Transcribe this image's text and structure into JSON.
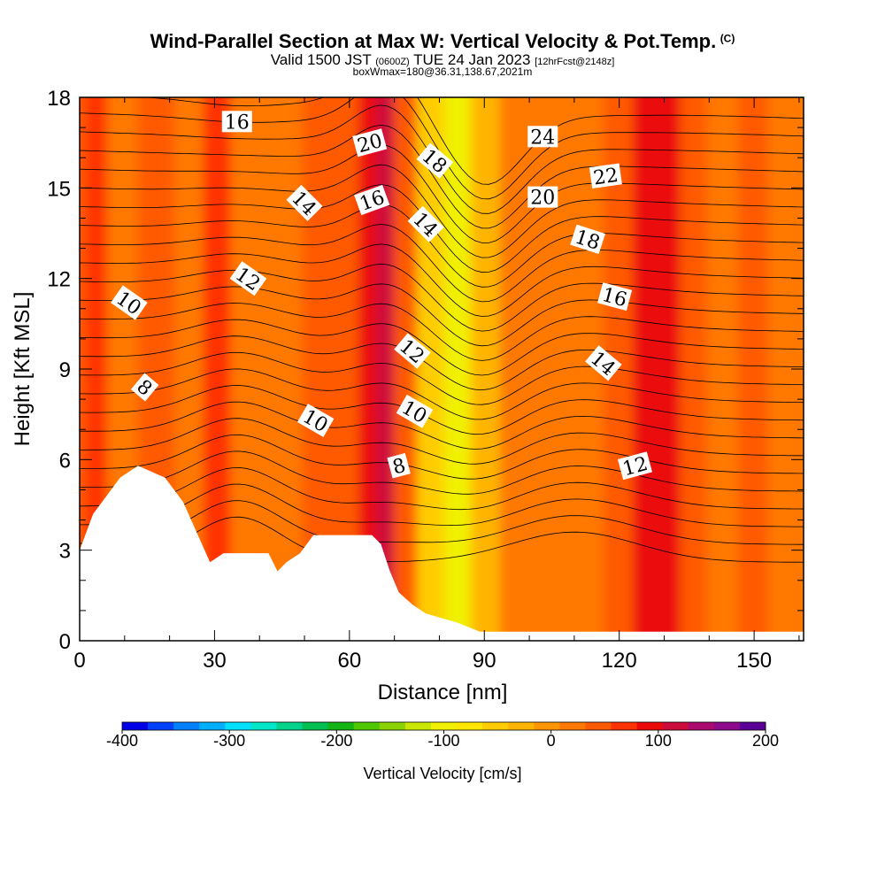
{
  "header": {
    "title": "Wind-Parallel Section at Max W: Vertical Velocity & Pot.Temp.",
    "copyright": "(C)",
    "valid_prefix": "Valid 1500 JST",
    "valid_zulu": "(0600Z)",
    "valid_date": "TUE 24 Jan 2023",
    "forecast_info": "[12hrFcst@2148z]",
    "box_info": "boxWmax=180@36.31,138.67,2021m"
  },
  "chart_data": {
    "type": "heatmap",
    "title": "Wind-Parallel Section at Max W: Vertical Velocity & Pot.Temp.",
    "xlabel": "Distance [nm]",
    "ylabel": "Height [Kft MSL]",
    "xlim": [
      0,
      161
    ],
    "ylim": [
      0,
      18
    ],
    "x_ticks": [
      0,
      30,
      60,
      90,
      120,
      150
    ],
    "y_ticks": [
      0,
      3,
      6,
      9,
      12,
      15,
      18
    ],
    "fill_variable": "Vertical Velocity [cm/s]",
    "contour_variable": "Potential temperature",
    "colorbar": {
      "label": "Vertical Velocity [cm/s]",
      "range": [
        -400,
        200
      ],
      "tick_labels": [
        "-400",
        "-300",
        "-200",
        "-100",
        "0",
        "100",
        "200"
      ],
      "ticks": [
        -400,
        -300,
        -200,
        -100,
        0,
        100,
        200
      ],
      "colors": [
        "#0000e6",
        "#0040ff",
        "#0080ff",
        "#00b0ff",
        "#00e0ff",
        "#00e6c8",
        "#00d28c",
        "#00be50",
        "#14b414",
        "#50c800",
        "#8cd200",
        "#c8e600",
        "#f0f000",
        "#ffe600",
        "#ffcc00",
        "#ffb400",
        "#ff9600",
        "#ff7800",
        "#ff5a00",
        "#ff3200",
        "#eb0a0a",
        "#cd0a3c",
        "#aa0a6e",
        "#8c0a8c",
        "#5a0096"
      ]
    },
    "velocity_columns": [
      {
        "x": 0,
        "value": 40
      },
      {
        "x": 3,
        "value": 70
      },
      {
        "x": 9,
        "value": 20
      },
      {
        "x": 17,
        "value": 40
      },
      {
        "x": 25,
        "value": 15
      },
      {
        "x": 30,
        "value": 60
      },
      {
        "x": 37,
        "value": 30
      },
      {
        "x": 46,
        "value": 10
      },
      {
        "x": 53,
        "value": 35
      },
      {
        "x": 60,
        "value": 50
      },
      {
        "x": 64,
        "value": 100
      },
      {
        "x": 68,
        "value": 110
      },
      {
        "x": 72,
        "value": 40
      },
      {
        "x": 78,
        "value": -60
      },
      {
        "x": 84,
        "value": -90
      },
      {
        "x": 90,
        "value": -40
      },
      {
        "x": 97,
        "value": 10
      },
      {
        "x": 105,
        "value": 15
      },
      {
        "x": 113,
        "value": 10
      },
      {
        "x": 120,
        "value": 40
      },
      {
        "x": 126,
        "value": 80
      },
      {
        "x": 131,
        "value": 95
      },
      {
        "x": 136,
        "value": 50
      },
      {
        "x": 143,
        "value": 25
      },
      {
        "x": 150,
        "value": 55
      },
      {
        "x": 156,
        "value": 20
      },
      {
        "x": 161,
        "value": 20
      }
    ],
    "terrain": [
      {
        "x": 0,
        "y": 3.0
      },
      {
        "x": 3,
        "y": 4.2
      },
      {
        "x": 6,
        "y": 4.8
      },
      {
        "x": 9,
        "y": 5.4
      },
      {
        "x": 13,
        "y": 5.8
      },
      {
        "x": 19,
        "y": 5.4
      },
      {
        "x": 23,
        "y": 4.6
      },
      {
        "x": 26,
        "y": 3.6
      },
      {
        "x": 29,
        "y": 2.6
      },
      {
        "x": 32,
        "y": 2.9
      },
      {
        "x": 42,
        "y": 2.9
      },
      {
        "x": 44,
        "y": 2.3
      },
      {
        "x": 46,
        "y": 2.6
      },
      {
        "x": 49,
        "y": 2.9
      },
      {
        "x": 52,
        "y": 3.5
      },
      {
        "x": 65,
        "y": 3.5
      },
      {
        "x": 67,
        "y": 3.2
      },
      {
        "x": 69,
        "y": 2.3
      },
      {
        "x": 71,
        "y": 1.6
      },
      {
        "x": 74,
        "y": 1.2
      },
      {
        "x": 77,
        "y": 0.9
      },
      {
        "x": 84,
        "y": 0.6
      },
      {
        "x": 89,
        "y": 0.3
      },
      {
        "x": 161,
        "y": 0.3
      }
    ],
    "contour_labels": [
      {
        "text": "16",
        "x": 35,
        "y": 17.2,
        "angle": 0
      },
      {
        "text": "20",
        "x": 64.5,
        "y": 16.5,
        "angle": -15
      },
      {
        "text": "18",
        "x": 79,
        "y": 15.9,
        "angle": 40
      },
      {
        "text": "24",
        "x": 103,
        "y": 16.7,
        "angle": 0
      },
      {
        "text": "22",
        "x": 117,
        "y": 15.4,
        "angle": -8
      },
      {
        "text": "14",
        "x": 50,
        "y": 14.5,
        "angle": 45
      },
      {
        "text": "16",
        "x": 65,
        "y": 14.6,
        "angle": -20
      },
      {
        "text": "20",
        "x": 103,
        "y": 14.7,
        "angle": 0
      },
      {
        "text": "14",
        "x": 77,
        "y": 13.8,
        "angle": 45
      },
      {
        "text": "18",
        "x": 113,
        "y": 13.3,
        "angle": 18
      },
      {
        "text": "12",
        "x": 37.5,
        "y": 12.0,
        "angle": 35
      },
      {
        "text": "10",
        "x": 11,
        "y": 11.2,
        "angle": 35
      },
      {
        "text": "16",
        "x": 119,
        "y": 11.4,
        "angle": 15
      },
      {
        "text": "12",
        "x": 74,
        "y": 9.6,
        "angle": 40
      },
      {
        "text": "14",
        "x": 116.5,
        "y": 9.2,
        "angle": 40
      },
      {
        "text": "8",
        "x": 14.5,
        "y": 8.4,
        "angle": 40
      },
      {
        "text": "10",
        "x": 74.5,
        "y": 7.6,
        "angle": 30
      },
      {
        "text": "10",
        "x": 52.5,
        "y": 7.3,
        "angle": 30
      },
      {
        "text": "8",
        "x": 71,
        "y": 5.8,
        "angle": -15
      },
      {
        "text": "12",
        "x": 123.5,
        "y": 5.8,
        "angle": -15
      }
    ]
  }
}
